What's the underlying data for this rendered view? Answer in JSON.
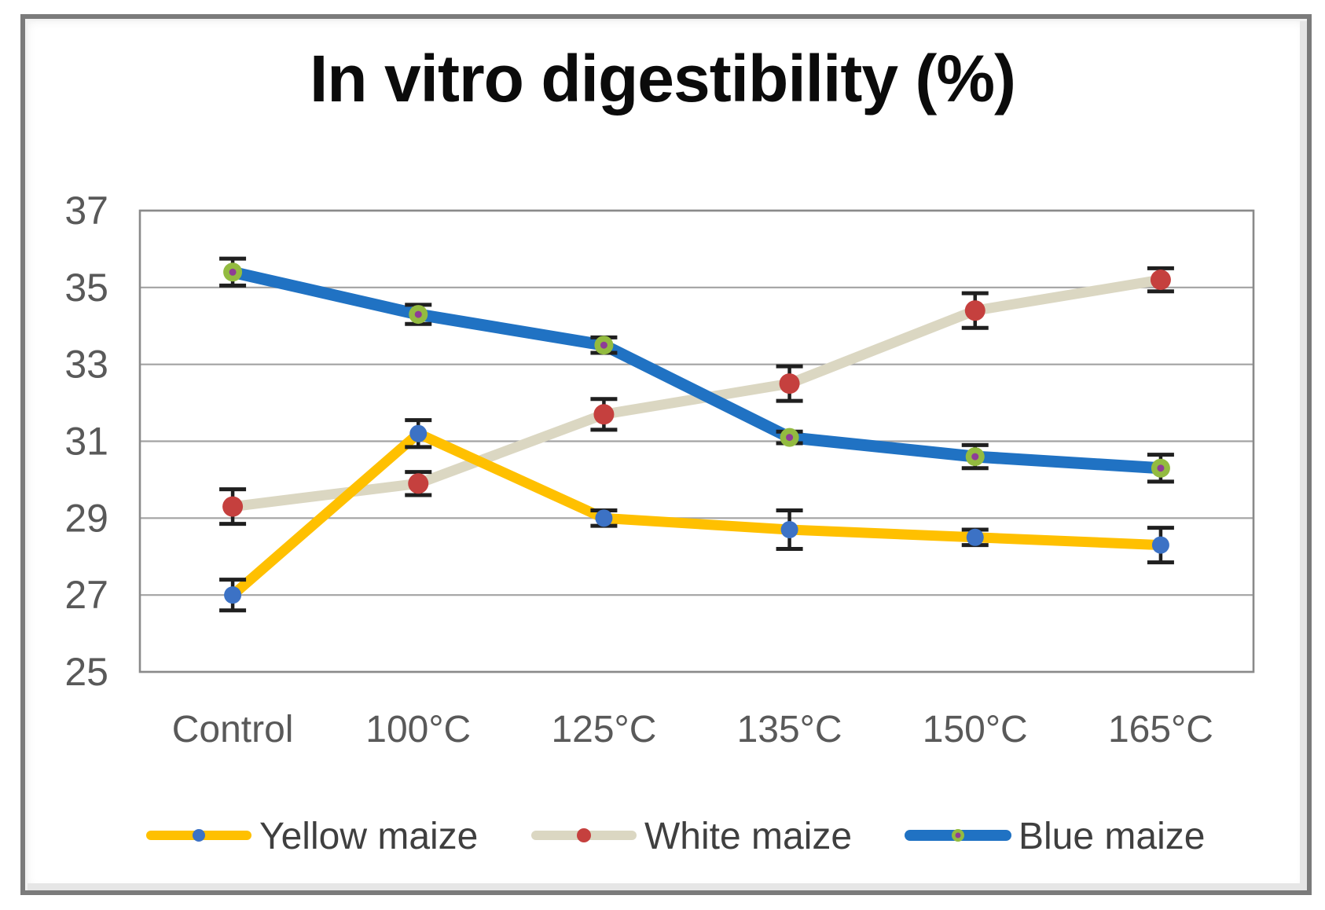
{
  "chart_data": {
    "type": "line",
    "title": "In vitro digestibility (%)",
    "categories": [
      "Control",
      "100°C",
      "125°C",
      "135°C",
      "150°C",
      "165°C"
    ],
    "xlabel": "",
    "ylabel": "",
    "ylim": [
      25,
      37
    ],
    "y_ticks": [
      37,
      35,
      33,
      31,
      29,
      27,
      25
    ],
    "grid": true,
    "legend_position": "bottom",
    "error_bars": true,
    "series": [
      {
        "name": "Yellow maize",
        "color": "#FFC000",
        "marker_color": "#3C72C5",
        "values": [
          27.0,
          31.2,
          29.0,
          28.7,
          28.5,
          28.3
        ],
        "errors": [
          0.4,
          0.35,
          0.2,
          0.5,
          0.2,
          0.45
        ]
      },
      {
        "name": "White maize",
        "color": "#DBD7C2",
        "marker_color": "#C5403E",
        "values": [
          29.3,
          29.9,
          31.7,
          32.5,
          34.4,
          35.2
        ],
        "errors": [
          0.45,
          0.3,
          0.4,
          0.45,
          0.45,
          0.3
        ]
      },
      {
        "name": "Blue maize",
        "color": "#2072C3",
        "marker_color": "#93BB40",
        "marker_center_color": "#8E3D97",
        "values": [
          35.4,
          34.3,
          33.5,
          31.1,
          30.6,
          30.3
        ],
        "errors": [
          0.35,
          0.25,
          0.2,
          0.15,
          0.3,
          0.35
        ]
      }
    ],
    "colors": {
      "title": "#0B0B0B",
      "axis_label": "#595959",
      "legend_text": "#3F3F3F",
      "gridline": "#A3A3A3",
      "plot_border": "#8A8A8A",
      "error_bar": "#1F1F1F",
      "page_frame": "#7B7B7B",
      "background": "#FFFFFF"
    }
  }
}
